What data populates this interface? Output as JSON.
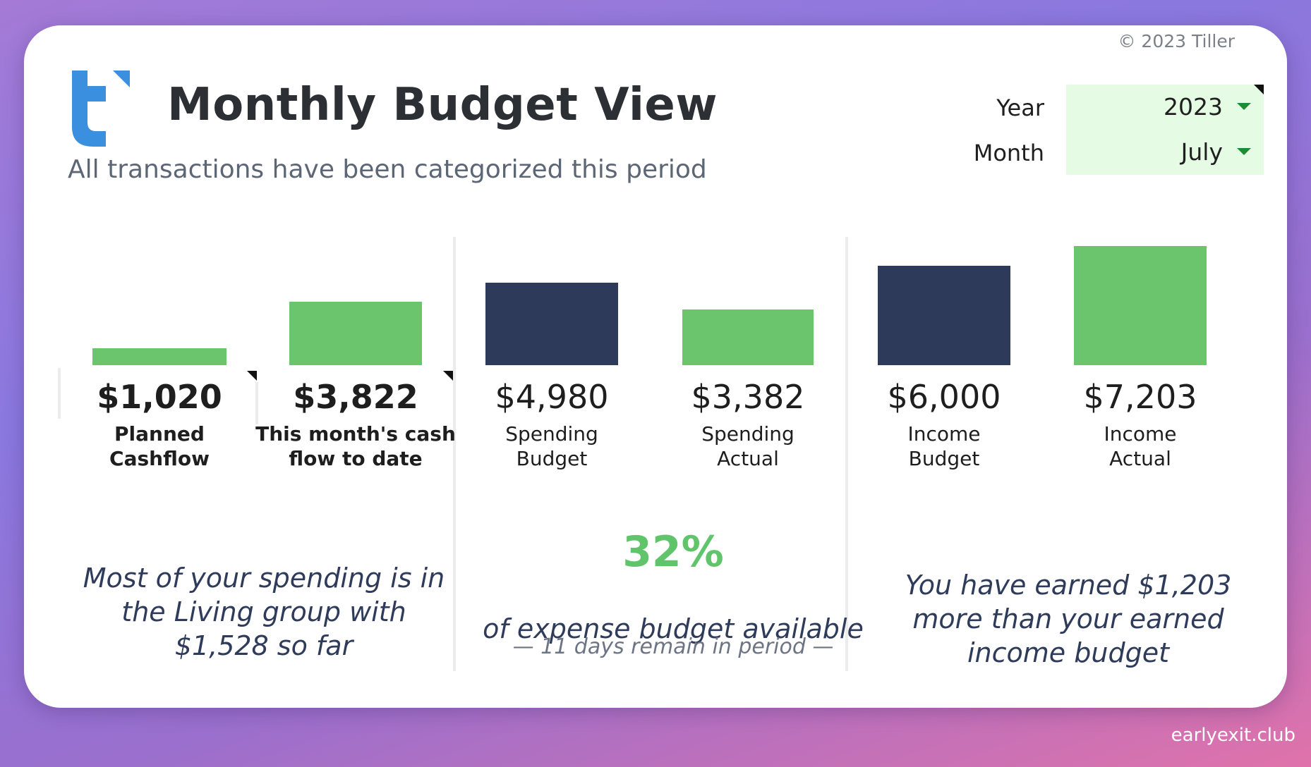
{
  "copyright": "© 2023 Tiller",
  "header": {
    "title": "Monthly Budget View",
    "subtitle": "All transactions have been categorized this period"
  },
  "selectors": {
    "year_label": "Year",
    "year_value": "2023",
    "month_label": "Month",
    "month_value": "July"
  },
  "colors": {
    "actual": "#6ac56d",
    "budget": "#2e3a59",
    "accent": "#5fc46a",
    "logo": "#3a8fde"
  },
  "chart_data": {
    "type": "bar",
    "categories": [
      "Planned Cashflow",
      "This month's cash flow to date",
      "Spending Budget",
      "Spending Actual",
      "Income Budget",
      "Income Actual"
    ],
    "values": [
      1020,
      3822,
      4980,
      3382,
      6000,
      7203
    ],
    "series_colors": [
      "#6ac56d",
      "#6ac56d",
      "#2e3a59",
      "#6ac56d",
      "#2e3a59",
      "#6ac56d"
    ]
  },
  "metrics": [
    {
      "value": "$1,020",
      "label": "Planned Cashflow"
    },
    {
      "value": "$3,822",
      "label": "This month's cash flow to date"
    },
    {
      "value": "$4,980",
      "label": "Spending Budget"
    },
    {
      "value": "$3,382",
      "label": "Spending Actual"
    },
    {
      "value": "$6,000",
      "label": "Income Budget"
    },
    {
      "value": "$7,203",
      "label": "Income Actual"
    }
  ],
  "notes": {
    "cashflow": "Most of your spending is in the Living group with $1,528 so far",
    "spending_percent": "32%",
    "spending_text": "of expense budget available",
    "days_remaining": "— 11 days remain in period —",
    "income": "You have earned $1,203 more than your earned income budget"
  },
  "watermark": "earlyexit.club"
}
